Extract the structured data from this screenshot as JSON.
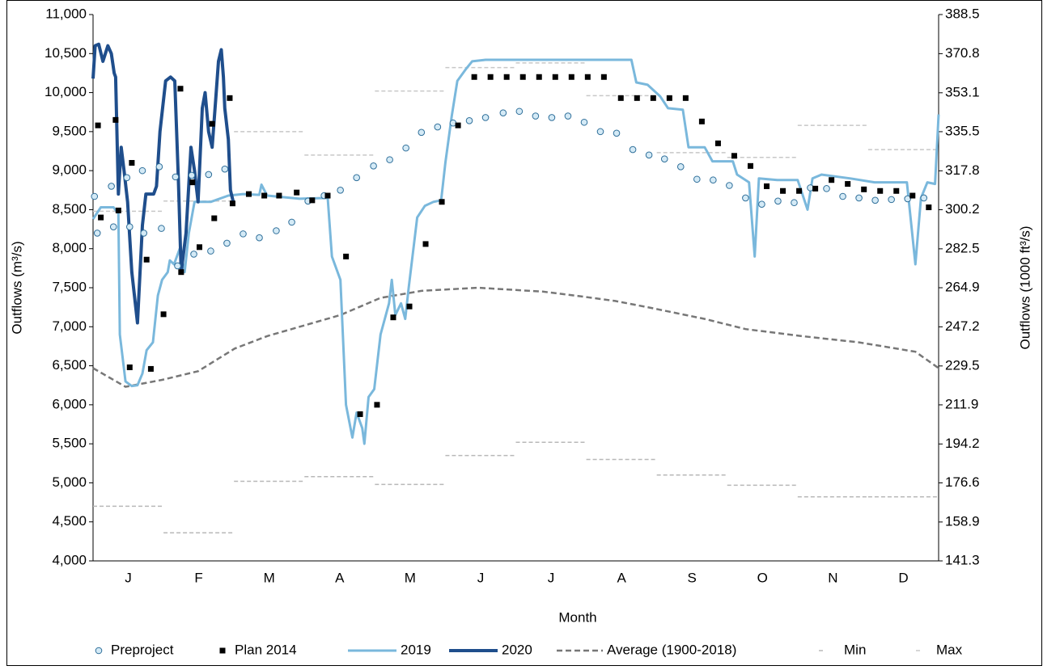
{
  "chart_data": {
    "type": "line",
    "xlabel": "Month",
    "ylabel": "Outflows (m³/s)",
    "y2label": "Outflows (1000 ft³/s)",
    "xlim": [
      0,
      12
    ],
    "xticks": [
      {
        "value": 0.5,
        "label": "J"
      },
      {
        "value": 1.5,
        "label": "F"
      },
      {
        "value": 2.5,
        "label": "M"
      },
      {
        "value": 3.5,
        "label": "A"
      },
      {
        "value": 4.5,
        "label": "M"
      },
      {
        "value": 5.5,
        "label": "J"
      },
      {
        "value": 6.5,
        "label": "J"
      },
      {
        "value": 7.5,
        "label": "A"
      },
      {
        "value": 8.5,
        "label": "S"
      },
      {
        "value": 9.5,
        "label": "O"
      },
      {
        "value": 10.5,
        "label": "N"
      },
      {
        "value": 11.5,
        "label": "D"
      }
    ],
    "ylim": [
      4000,
      11000
    ],
    "yticks": [
      {
        "value": 4000,
        "label": "4,000"
      },
      {
        "value": 4500,
        "label": "4,500"
      },
      {
        "value": 5000,
        "label": "5,000"
      },
      {
        "value": 5500,
        "label": "5,500"
      },
      {
        "value": 6000,
        "label": "6,000"
      },
      {
        "value": 6500,
        "label": "6,500"
      },
      {
        "value": 7000,
        "label": "7,000"
      },
      {
        "value": 7500,
        "label": "7,500"
      },
      {
        "value": 8000,
        "label": "8,000"
      },
      {
        "value": 8500,
        "label": "8,500"
      },
      {
        "value": 9000,
        "label": "9,000"
      },
      {
        "value": 9500,
        "label": "9,500"
      },
      {
        "value": 10000,
        "label": "10,000"
      },
      {
        "value": 10500,
        "label": "10,500"
      },
      {
        "value": 11000,
        "label": "11,000"
      }
    ],
    "y2lim": [
      141.3,
      388.5
    ],
    "y2ticks": [
      141.3,
      158.9,
      176.6,
      194.2,
      211.9,
      229.5,
      247.2,
      264.9,
      282.5,
      300.2,
      317.8,
      335.5,
      353.1,
      370.8,
      388.5
    ],
    "grid": false,
    "legend": "bottom",
    "series": [
      {
        "name": "Preproject",
        "mark": "circle",
        "color": "#2f6f9a",
        "x": [
          0.02,
          0.06,
          0.26,
          0.29,
          0.48,
          0.52,
          0.7,
          0.72,
          0.94,
          0.97,
          1.17,
          1.2,
          1.4,
          1.43,
          1.64,
          1.67,
          1.87,
          1.9,
          2.13,
          2.36,
          2.6,
          2.82,
          3.05,
          3.28,
          3.51,
          3.74,
          3.98,
          4.21,
          4.44,
          4.66,
          4.89,
          5.11,
          5.34,
          5.57,
          5.82,
          6.05,
          6.28,
          6.51,
          6.74,
          6.97,
          7.2,
          7.43,
          7.66,
          7.89,
          8.11,
          8.34,
          8.57,
          8.8,
          9.03,
          9.26,
          9.49,
          9.72,
          9.95,
          10.18,
          10.41,
          10.64,
          10.87,
          11.1,
          11.33,
          11.56,
          11.79
        ],
        "values": [
          8670,
          8200,
          8800,
          8280,
          8910,
          8280,
          9000,
          8200,
          9050,
          8260,
          8920,
          7780,
          8940,
          7930,
          8950,
          7970,
          9020,
          8070,
          8190,
          8140,
          8230,
          8340,
          8610,
          8680,
          8750,
          8910,
          9060,
          9140,
          9290,
          9490,
          9560,
          9610,
          9640,
          9680,
          9740,
          9760,
          9700,
          9680,
          9700,
          9620,
          9500,
          9480,
          9270,
          9200,
          9150,
          9050,
          8890,
          8880,
          8810,
          8650,
          8570,
          8610,
          8590,
          8780,
          8770,
          8670,
          8650,
          8620,
          8630,
          8640,
          8650
        ]
      },
      {
        "name": "Plan 2014",
        "mark": "square",
        "color": "#000000",
        "x": [
          0.07,
          0.11,
          0.32,
          0.36,
          0.52,
          0.55,
          0.76,
          0.82,
          1.0,
          1.24,
          1.25,
          1.41,
          1.51,
          1.69,
          1.72,
          1.94,
          1.98,
          2.21,
          2.43,
          2.64,
          2.89,
          3.11,
          3.33,
          3.59,
          3.79,
          4.03,
          4.26,
          4.49,
          4.72,
          4.95,
          5.18,
          5.41,
          5.64,
          5.87,
          6.1,
          6.33,
          6.56,
          6.79,
          7.02,
          7.25,
          7.49,
          7.72,
          7.95,
          8.18,
          8.41,
          8.64,
          8.87,
          9.1,
          9.33,
          9.56,
          9.79,
          10.02,
          10.25,
          10.48,
          10.71,
          10.94,
          11.17,
          11.4,
          11.63,
          11.86
        ],
        "values": [
          9580,
          8400,
          9650,
          8490,
          6480,
          9100,
          7860,
          6460,
          7160,
          10050,
          7700,
          8850,
          8020,
          9600,
          8390,
          9930,
          8580,
          8700,
          8680,
          8680,
          8720,
          8620,
          8680,
          7900,
          5880,
          6000,
          7120,
          7260,
          8060,
          8600,
          9580,
          10200,
          10200,
          10200,
          10200,
          10200,
          10200,
          10200,
          10200,
          10200,
          9930,
          9930,
          9930,
          9930,
          9930,
          9630,
          9350,
          9190,
          9060,
          8800,
          8740,
          8740,
          8770,
          8880,
          8830,
          8760,
          8740,
          8740,
          8680,
          8530
        ]
      },
      {
        "name": "2019",
        "mark": "line",
        "color": "#7ab8dc",
        "x": [
          0,
          0.11,
          0.29,
          0.36,
          0.38,
          0.46,
          0.55,
          0.63,
          0.7,
          0.76,
          0.85,
          0.92,
          0.98,
          1.06,
          1.09,
          1.15,
          1.23,
          1.3,
          1.36,
          1.44,
          1.67,
          1.92,
          2.13,
          2.36,
          2.39,
          2.47,
          2.93,
          3.33,
          3.39,
          3.51,
          3.59,
          3.68,
          3.74,
          3.82,
          3.85,
          3.91,
          3.99,
          4.08,
          4.2,
          4.24,
          4.29,
          4.37,
          4.43,
          4.48,
          4.6,
          4.71,
          4.83,
          4.94,
          5.0,
          5.09,
          5.17,
          5.29,
          5.38,
          5.57,
          6.72,
          7.64,
          7.71,
          7.87,
          8.05,
          8.16,
          8.37,
          8.45,
          8.68,
          8.79,
          9.08,
          9.14,
          9.31,
          9.39,
          9.45,
          9.71,
          10.0,
          10.14,
          10.21,
          10.34,
          10.75,
          11.09,
          11.55,
          11.67,
          11.75,
          11.84,
          11.95,
          12.0
        ],
        "values": [
          8380,
          8530,
          8530,
          8450,
          6900,
          6300,
          6240,
          6250,
          6400,
          6700,
          6800,
          7400,
          7600,
          7700,
          7850,
          7800,
          8000,
          7700,
          8200,
          8600,
          8600,
          8680,
          8700,
          8690,
          8820,
          8680,
          8640,
          8650,
          7900,
          7600,
          6000,
          5580,
          5900,
          5700,
          5500,
          6100,
          6200,
          6900,
          7300,
          7600,
          7150,
          7300,
          7100,
          7500,
          8400,
          8550,
          8600,
          8620,
          9100,
          9700,
          10150,
          10300,
          10400,
          10420,
          10420,
          10420,
          10130,
          10100,
          9950,
          9800,
          9780,
          9300,
          9300,
          9120,
          9120,
          8950,
          8850,
          7900,
          8900,
          8880,
          8880,
          8500,
          8900,
          8950,
          8900,
          8850,
          8850,
          7800,
          8650,
          8850,
          8830,
          9720
        ]
      },
      {
        "name": "2020",
        "mark": "line",
        "color": "#1f4e8c",
        "x": [
          0,
          0.03,
          0.08,
          0.14,
          0.21,
          0.26,
          0.3,
          0.32,
          0.36,
          0.4,
          0.44,
          0.49,
          0.55,
          0.63,
          0.7,
          0.75,
          0.86,
          0.9,
          0.95,
          1.03,
          1.1,
          1.16,
          1.21,
          1.25,
          1.32,
          1.39,
          1.44,
          1.49,
          1.55,
          1.59,
          1.64,
          1.69,
          1.74,
          1.78,
          1.82,
          1.85,
          1.87,
          1.92,
          1.95,
          1.99
        ],
        "values": [
          10180,
          10600,
          10620,
          10400,
          10600,
          10500,
          10250,
          10200,
          8700,
          9300,
          9000,
          8600,
          7700,
          7050,
          8300,
          8700,
          8700,
          8800,
          9500,
          10150,
          10200,
          10150,
          8900,
          7700,
          8200,
          9300,
          9000,
          8600,
          9800,
          10000,
          9500,
          9300,
          9900,
          10400,
          10550,
          10200,
          9800,
          9400,
          8750,
          8600
        ]
      },
      {
        "name": "Average (1900-2018)",
        "mark": "dashed",
        "color": "#777777",
        "x": [
          0,
          0.46,
          0.98,
          1.49,
          2.01,
          2.47,
          3.51,
          4.08,
          4.66,
          5.46,
          6.38,
          6.84,
          7.41,
          7.87,
          8.68,
          9.26,
          10.06,
          10.87,
          11.67,
          12
        ],
        "values": [
          6470,
          6230,
          6320,
          6430,
          6720,
          6880,
          7150,
          7370,
          7460,
          7500,
          7450,
          7400,
          7330,
          7250,
          7100,
          6970,
          6880,
          6800,
          6680,
          6470
        ]
      },
      {
        "name": "Min",
        "mark": "step",
        "color": "#b8b8b8",
        "x": [
          0,
          1,
          2,
          3,
          4,
          5,
          6,
          7,
          8,
          9,
          10,
          11
        ],
        "values": [
          4700,
          4360,
          5020,
          5080,
          4980,
          5350,
          5520,
          5300,
          5100,
          4970,
          4820,
          4820
        ]
      },
      {
        "name": "Max",
        "mark": "step",
        "color": "#c8c8c8",
        "x": [
          0,
          1,
          2,
          3,
          4,
          5,
          6,
          7,
          8,
          9,
          10,
          11
        ],
        "values": [
          8480,
          8610,
          9500,
          9200,
          10020,
          10320,
          10380,
          9960,
          9230,
          9170,
          9580,
          9270
        ]
      }
    ]
  }
}
